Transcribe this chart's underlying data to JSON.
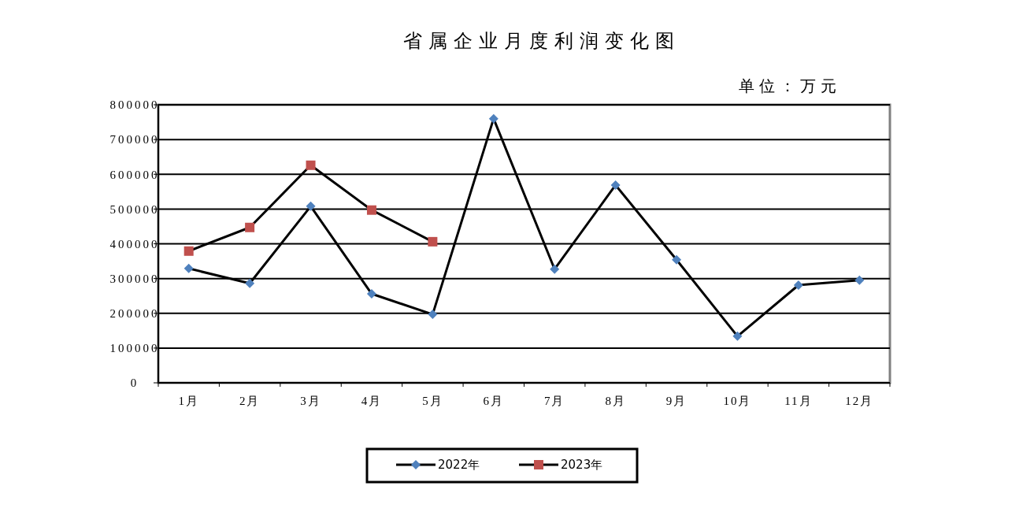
{
  "chart_data": {
    "type": "line",
    "title": "省属企业月度利润变化图",
    "annotations": [
      "单位：万元"
    ],
    "categories": [
      "1月",
      "2月",
      "3月",
      "4月",
      "5月",
      "6月",
      "7月",
      "8月",
      "9月",
      "10月",
      "11月",
      "12月"
    ],
    "series": [
      {
        "name": "2022年",
        "color": "#4f81bd",
        "marker": "diamond",
        "values": [
          329000,
          286000,
          508000,
          256000,
          197000,
          760000,
          327000,
          569000,
          354000,
          134000,
          281000,
          295000
        ]
      },
      {
        "name": "2023年",
        "color": "#c0504d",
        "marker": "square",
        "values": [
          379000,
          447000,
          626000,
          497000,
          406000,
          null,
          null,
          null,
          null,
          null,
          null,
          null
        ]
      }
    ],
    "ylim": [
      0,
      800000
    ],
    "yticks": [
      0,
      100000,
      200000,
      300000,
      400000,
      500000,
      600000,
      700000,
      800000
    ],
    "grid": "y",
    "legend": "bottom",
    "line_style": "solid"
  }
}
